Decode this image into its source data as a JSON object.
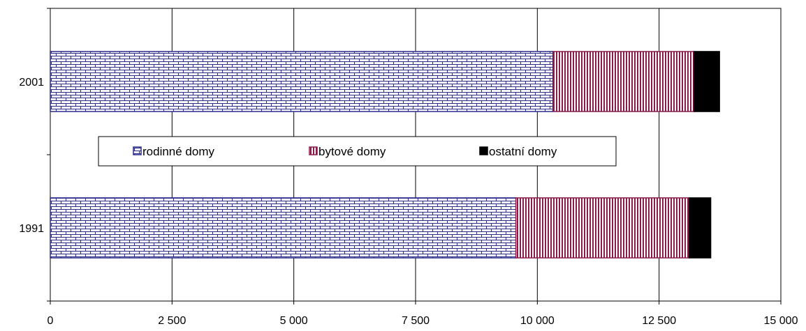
{
  "chart_data": {
    "type": "bar",
    "orientation": "horizontal",
    "stacked": true,
    "categories": [
      "2001",
      "1991"
    ],
    "series": [
      {
        "name": "rodinné domy",
        "values": [
          10320,
          9560
        ],
        "color": "#2b2b8c",
        "pattern": "brick"
      },
      {
        "name": "bytové domy",
        "values": [
          2900,
          3560
        ],
        "color": "#8b1a4a",
        "pattern": "vertical-stripes"
      },
      {
        "name": "ostatní domy",
        "values": [
          520,
          440
        ],
        "color": "#000000",
        "pattern": "solid"
      }
    ],
    "x_ticks": [
      "0",
      "2 500",
      "5 000",
      "7 500",
      "10 000",
      "12 500",
      "15 000"
    ],
    "xlim": [
      0,
      15000
    ],
    "grid": "vertical",
    "legend": "inside-middle",
    "title": "",
    "xlabel": "",
    "ylabel": ""
  }
}
